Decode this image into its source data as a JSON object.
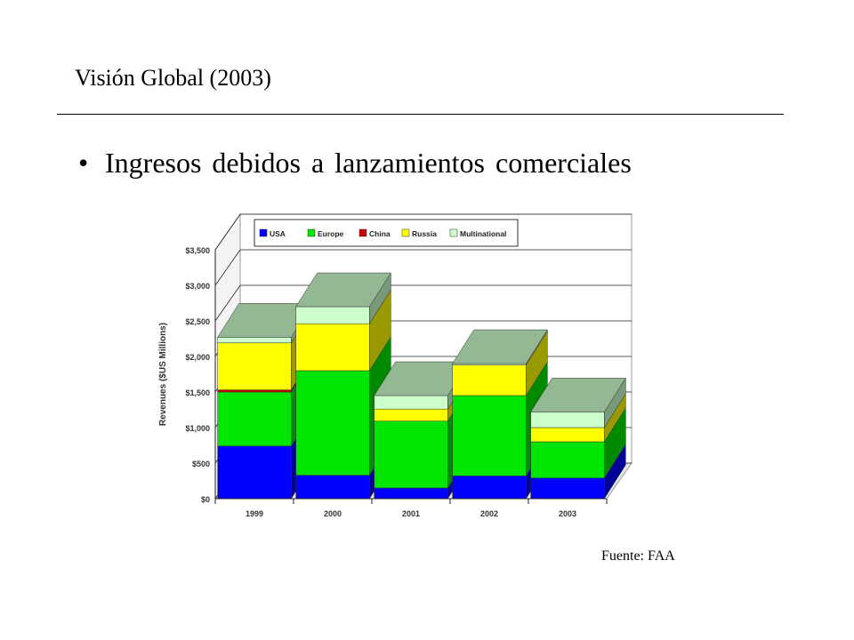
{
  "slide": {
    "title": "Visión Global (2003)",
    "bullet_symbol": "•",
    "bullet": "Ingresos debidos a lanzamientos comerciales",
    "source": "Fuente: FAA"
  },
  "chart_data": {
    "type": "bar",
    "stacked": true,
    "three_d": true,
    "title": "",
    "xlabel": "",
    "ylabel": "Revenues ($US Millions)",
    "ylim": [
      0,
      3500
    ],
    "yticks": [
      0,
      500,
      1000,
      1500,
      2000,
      2500,
      3000,
      3500
    ],
    "ytick_labels": [
      "$0",
      "$500",
      "$1,000",
      "$1,500",
      "$2,000",
      "$2,500",
      "$3,000",
      "$3,500"
    ],
    "categories": [
      "1999",
      "2000",
      "2001",
      "2002",
      "2003"
    ],
    "legend_position": "top",
    "grid": true,
    "series": [
      {
        "name": "USA",
        "color": "#0000ff",
        "values": [
          740,
          330,
          150,
          320,
          290
        ]
      },
      {
        "name": "Europe",
        "color": "#00e600",
        "values": [
          760,
          1470,
          940,
          1130,
          510
        ]
      },
      {
        "name": "China",
        "color": "#cc0000",
        "values": [
          30,
          0,
          0,
          0,
          0
        ]
      },
      {
        "name": "Russia",
        "color": "#ffff00",
        "values": [
          660,
          660,
          170,
          430,
          200
        ]
      },
      {
        "name": "Multinational",
        "color": "#ccffcc",
        "values": [
          80,
          240,
          190,
          20,
          220
        ]
      }
    ]
  }
}
